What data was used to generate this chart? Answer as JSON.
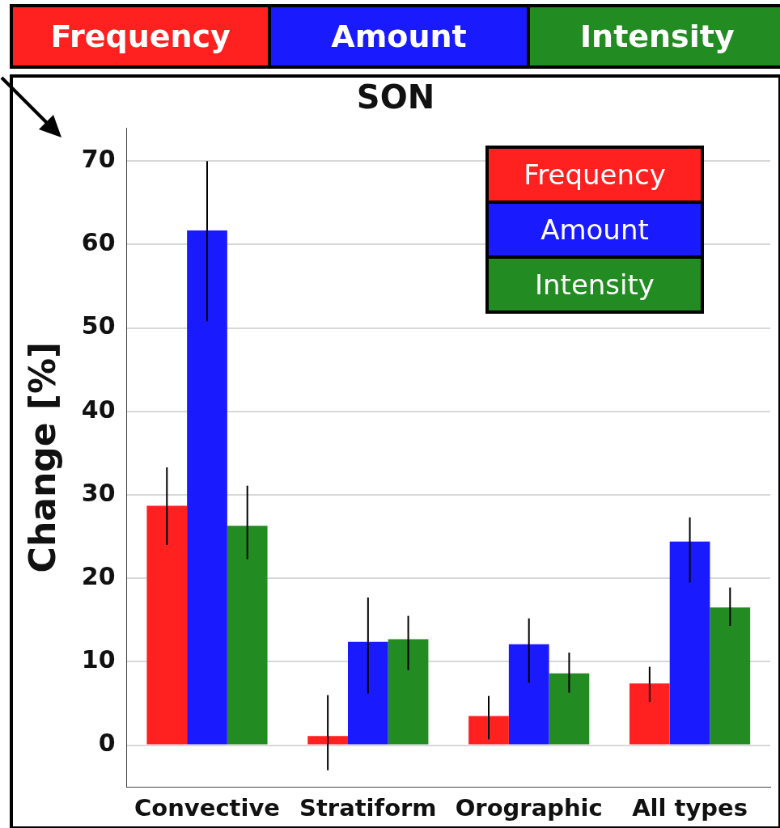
{
  "chart_data": {
    "type": "bar",
    "title": "SON",
    "ylabel": "Change [%]",
    "categories": [
      "Convective",
      "Stratiform",
      "Orographic",
      "All types"
    ],
    "series": [
      {
        "name": "Frequency",
        "color": "#ff2020",
        "values": [
          28.7,
          1.1,
          3.5,
          7.4
        ],
        "errors": [
          [
            24.0,
            33.3
          ],
          [
            -3.0,
            6.0
          ],
          [
            0.7,
            5.9
          ],
          [
            5.2,
            9.4
          ]
        ]
      },
      {
        "name": "Amount",
        "color": "#1a1aff",
        "values": [
          61.7,
          12.4,
          12.1,
          24.4
        ],
        "errors": [
          [
            50.8,
            70.0
          ],
          [
            6.2,
            17.7
          ],
          [
            7.5,
            15.2
          ],
          [
            19.5,
            27.3
          ]
        ]
      },
      {
        "name": "Intensity",
        "color": "#228b22",
        "values": [
          26.3,
          12.7,
          8.6,
          16.5
        ],
        "errors": [
          [
            22.3,
            31.1
          ],
          [
            9.0,
            15.5
          ],
          [
            6.3,
            11.1
          ],
          [
            14.3,
            18.9
          ]
        ]
      }
    ],
    "ylim": [
      -5,
      74
    ],
    "yticks": [
      0,
      10,
      20,
      30,
      40,
      50,
      60,
      70
    ],
    "grid": "y",
    "legend": "top"
  }
}
